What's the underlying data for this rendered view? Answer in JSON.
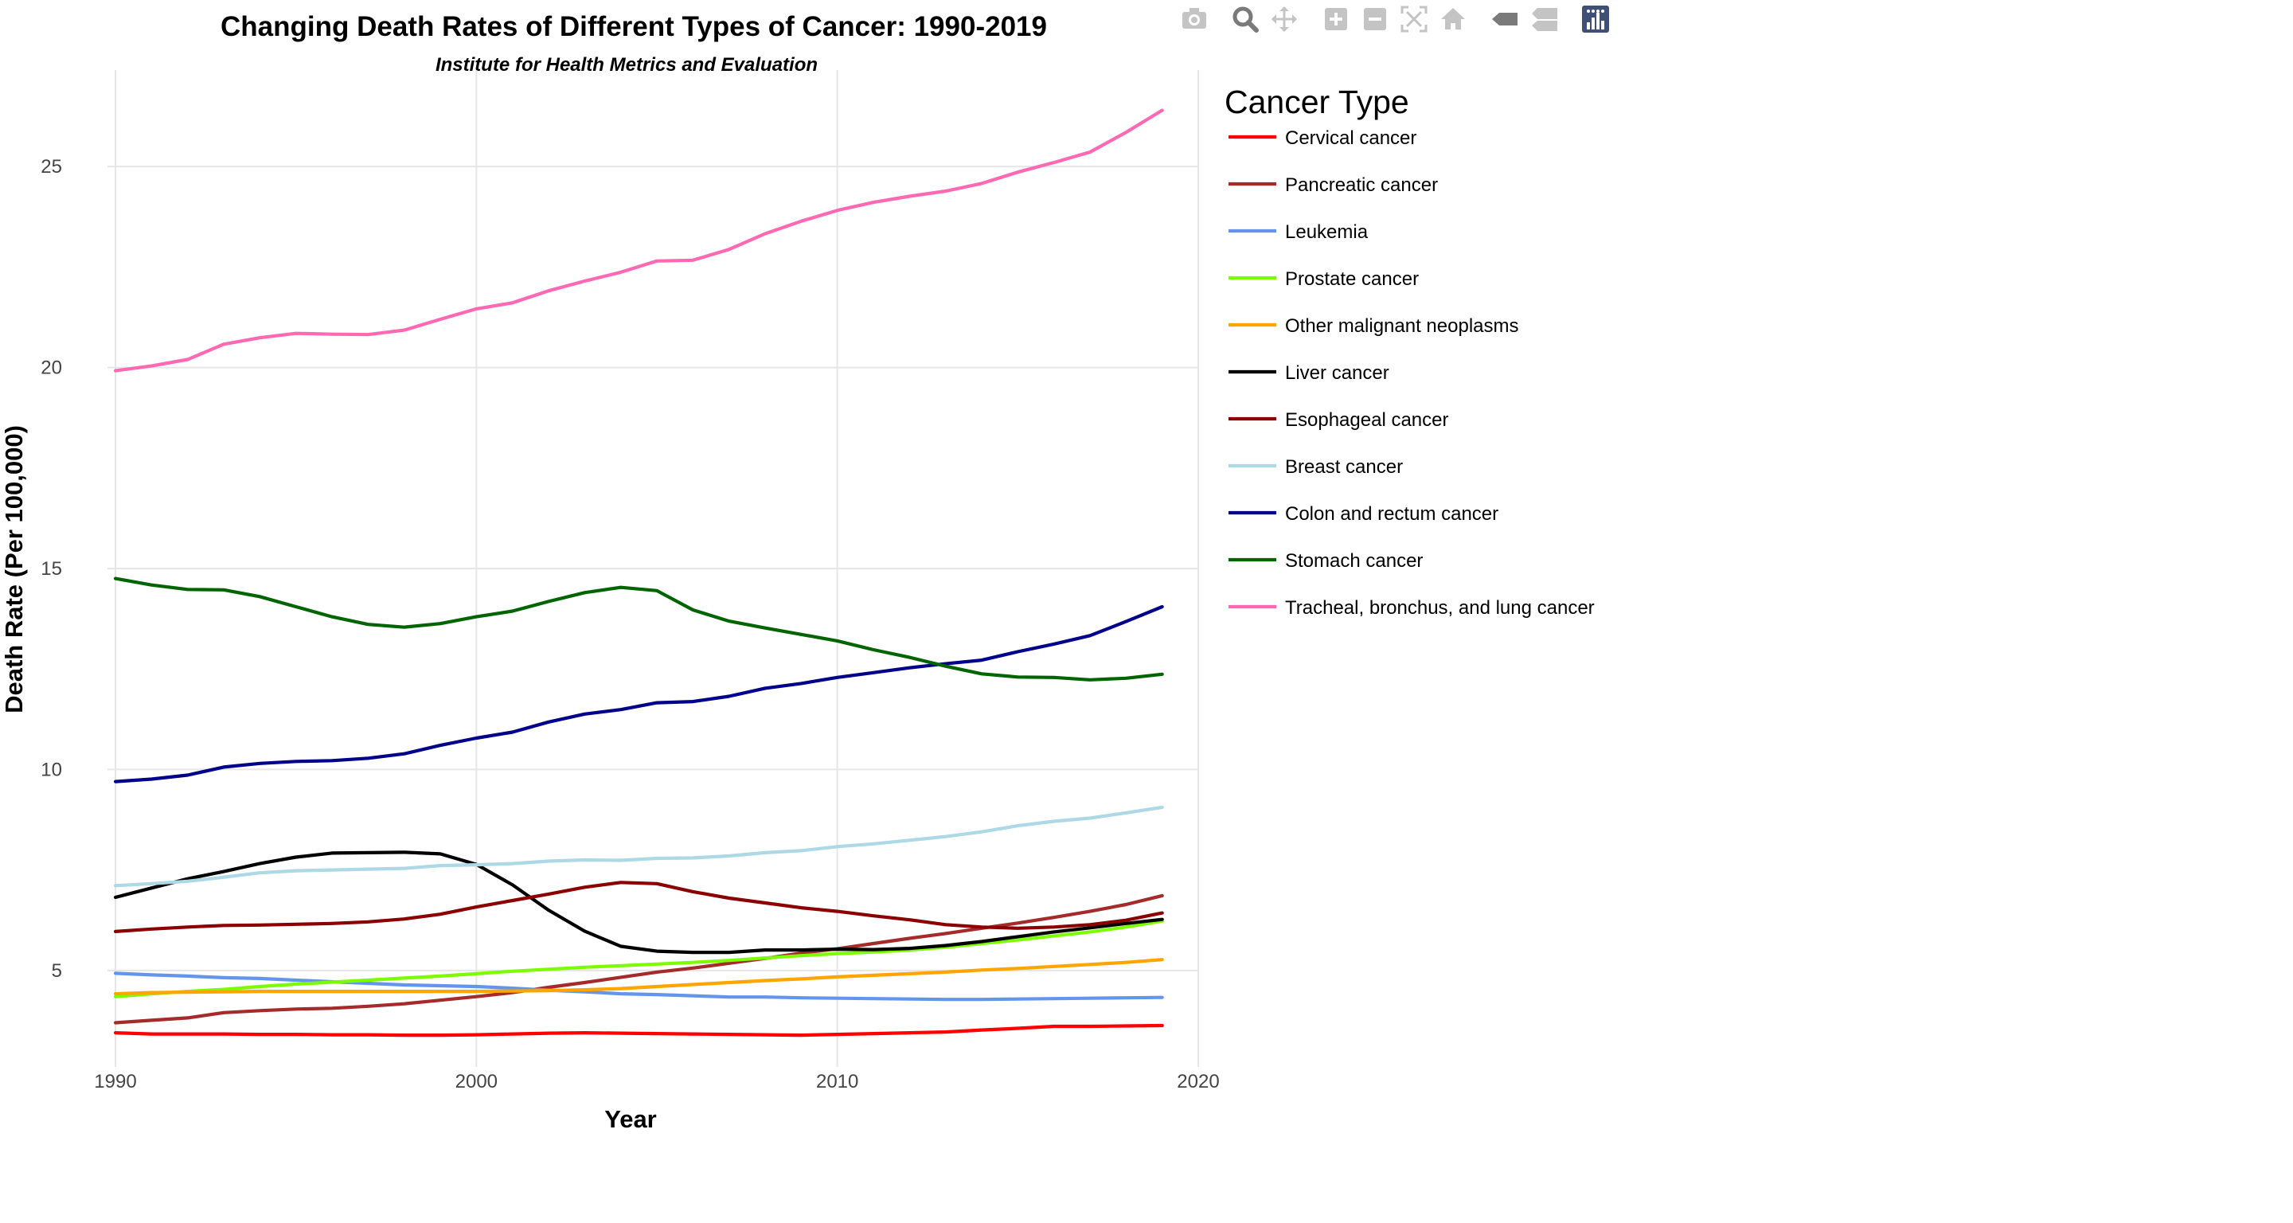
{
  "toolbar": {
    "buttons": [
      {
        "name": "camera-icon",
        "glyph": "camera"
      },
      {
        "name": "zoom-icon",
        "glyph": "zoom"
      },
      {
        "name": "pan-icon",
        "glyph": "pan"
      },
      {
        "name": "zoom-in-icon",
        "glyph": "plus"
      },
      {
        "name": "zoom-out-icon",
        "glyph": "minus"
      },
      {
        "name": "autoscale-icon",
        "glyph": "autoscale"
      },
      {
        "name": "home-icon",
        "glyph": "home"
      },
      {
        "name": "spike-lines-icon",
        "glyph": "tag"
      },
      {
        "name": "compare-hover-icon",
        "glyph": "compare"
      },
      {
        "name": "plotly-logo-icon",
        "glyph": "logo"
      }
    ]
  },
  "chart_data": {
    "type": "line",
    "title": "Changing Death Rates of Different Types of Cancer: 1990-2019",
    "subtitle": "Institute for Health Metrics and Evaluation",
    "xlabel": "Year",
    "ylabel": "Death Rate (Per 100,000)",
    "xlim": [
      1990,
      2020
    ],
    "ylim": [
      2.6,
      27.4
    ],
    "xticks": [
      1990,
      2000,
      2010,
      2020
    ],
    "yticks": [
      5,
      10,
      15,
      20,
      25
    ],
    "grid": true,
    "legend_title": "Cancer Type",
    "legend_position": "right",
    "x": [
      1990,
      1991,
      1992,
      1993,
      1994,
      1995,
      1996,
      1997,
      1998,
      1999,
      2000,
      2001,
      2002,
      2003,
      2004,
      2005,
      2006,
      2007,
      2008,
      2009,
      2010,
      2011,
      2012,
      2013,
      2014,
      2015,
      2016,
      2017,
      2018,
      2019
    ],
    "series": [
      {
        "name": "Cervical cancer",
        "color": "#ff0000",
        "values": [
          3.45,
          3.42,
          3.42,
          3.42,
          3.41,
          3.41,
          3.4,
          3.4,
          3.39,
          3.39,
          3.4,
          3.42,
          3.44,
          3.45,
          3.44,
          3.43,
          3.42,
          3.41,
          3.4,
          3.39,
          3.41,
          3.43,
          3.45,
          3.47,
          3.52,
          3.56,
          3.61,
          3.61,
          3.62,
          3.63
        ]
      },
      {
        "name": "Pancreatic cancer",
        "color": "#a52a2a",
        "values": [
          3.7,
          3.76,
          3.82,
          3.95,
          4.0,
          4.04,
          4.06,
          4.11,
          4.17,
          4.26,
          4.35,
          4.45,
          4.58,
          4.7,
          4.83,
          4.96,
          5.06,
          5.18,
          5.3,
          5.43,
          5.54,
          5.67,
          5.8,
          5.92,
          6.05,
          6.18,
          6.32,
          6.47,
          6.64,
          6.86
        ]
      },
      {
        "name": "Leukemia",
        "color": "#6495ed",
        "values": [
          4.93,
          4.89,
          4.86,
          4.82,
          4.8,
          4.76,
          4.72,
          4.68,
          4.64,
          4.62,
          4.6,
          4.56,
          4.51,
          4.47,
          4.42,
          4.4,
          4.37,
          4.34,
          4.34,
          4.32,
          4.31,
          4.3,
          4.29,
          4.28,
          4.28,
          4.29,
          4.3,
          4.31,
          4.32,
          4.33
        ]
      },
      {
        "name": "Prostate cancer",
        "color": "#7cfc00",
        "values": [
          4.35,
          4.42,
          4.48,
          4.53,
          4.6,
          4.66,
          4.71,
          4.76,
          4.81,
          4.86,
          4.92,
          4.98,
          5.03,
          5.08,
          5.12,
          5.16,
          5.2,
          5.25,
          5.31,
          5.37,
          5.42,
          5.46,
          5.51,
          5.58,
          5.67,
          5.76,
          5.86,
          5.96,
          6.08,
          6.23
        ]
      },
      {
        "name": "Other malignant neoplasms",
        "color": "#ffa500",
        "values": [
          4.42,
          4.45,
          4.46,
          4.47,
          4.48,
          4.48,
          4.48,
          4.48,
          4.48,
          4.48,
          4.48,
          4.49,
          4.5,
          4.52,
          4.55,
          4.6,
          4.65,
          4.7,
          4.75,
          4.79,
          4.84,
          4.88,
          4.92,
          4.96,
          5.01,
          5.05,
          5.1,
          5.15,
          5.2,
          5.27
        ]
      },
      {
        "name": "Liver cancer",
        "color": "#000000",
        "values": [
          6.82,
          7.05,
          7.28,
          7.46,
          7.66,
          7.82,
          7.92,
          7.93,
          7.94,
          7.9,
          7.64,
          7.13,
          6.5,
          5.98,
          5.6,
          5.48,
          5.45,
          5.45,
          5.51,
          5.51,
          5.53,
          5.52,
          5.55,
          5.62,
          5.72,
          5.84,
          5.96,
          6.06,
          6.17,
          6.27
        ]
      },
      {
        "name": "Esophageal cancer",
        "color": "#8b0000",
        "values": [
          5.97,
          6.03,
          6.08,
          6.12,
          6.13,
          6.15,
          6.17,
          6.21,
          6.28,
          6.4,
          6.58,
          6.74,
          6.9,
          7.07,
          7.19,
          7.16,
          6.96,
          6.8,
          6.68,
          6.56,
          6.47,
          6.36,
          6.26,
          6.14,
          6.08,
          6.05,
          6.08,
          6.14,
          6.25,
          6.43
        ]
      },
      {
        "name": "Breast cancer",
        "color": "#add8e6",
        "values": [
          7.11,
          7.16,
          7.22,
          7.32,
          7.43,
          7.48,
          7.5,
          7.52,
          7.54,
          7.61,
          7.63,
          7.66,
          7.72,
          7.75,
          7.74,
          7.79,
          7.8,
          7.85,
          7.93,
          7.98,
          8.08,
          8.15,
          8.24,
          8.33,
          8.45,
          8.6,
          8.71,
          8.79,
          8.92,
          9.06
        ]
      },
      {
        "name": "Colon and rectum cancer",
        "color": "#00008b",
        "values": [
          9.7,
          9.76,
          9.86,
          10.06,
          10.15,
          10.2,
          10.22,
          10.28,
          10.39,
          10.6,
          10.78,
          10.93,
          11.18,
          11.38,
          11.49,
          11.66,
          11.69,
          11.82,
          12.02,
          12.14,
          12.29,
          12.41,
          12.53,
          12.63,
          12.72,
          12.93,
          13.12,
          13.33,
          13.68,
          14.05
        ]
      },
      {
        "name": "Stomach cancer",
        "color": "#006400",
        "values": [
          14.75,
          14.59,
          14.48,
          14.47,
          14.3,
          14.05,
          13.8,
          13.61,
          13.54,
          13.63,
          13.8,
          13.94,
          14.18,
          14.4,
          14.53,
          14.45,
          13.97,
          13.69,
          13.52,
          13.36,
          13.2,
          12.98,
          12.79,
          12.57,
          12.38,
          12.3,
          12.29,
          12.23,
          12.27,
          12.37
        ]
      },
      {
        "name": "Tracheal, bronchus, and lung cancer",
        "color": "#ff69b4",
        "values": [
          19.92,
          20.04,
          20.2,
          20.58,
          20.74,
          20.85,
          20.83,
          20.82,
          20.93,
          21.2,
          21.46,
          21.61,
          21.91,
          22.15,
          22.37,
          22.65,
          22.67,
          22.94,
          23.33,
          23.64,
          23.91,
          24.11,
          24.26,
          24.39,
          24.58,
          24.86,
          25.1,
          25.36,
          25.85,
          26.4
        ]
      }
    ]
  }
}
